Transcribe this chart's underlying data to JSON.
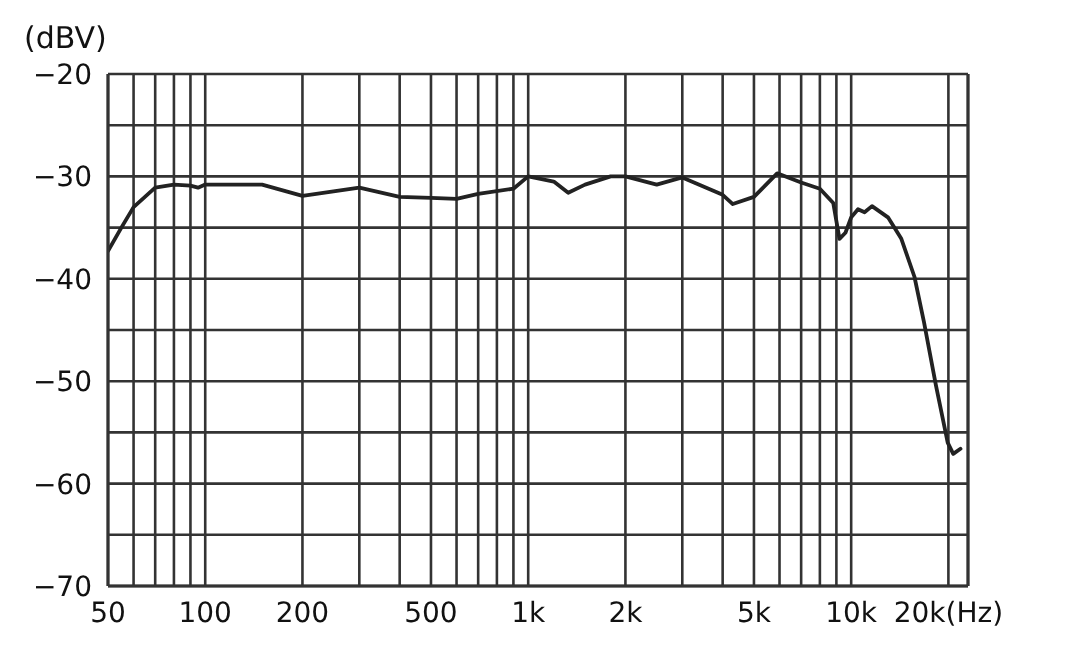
{
  "chart_data": {
    "type": "line",
    "ylabel": "(dBV)",
    "log": "x",
    "grid": true,
    "legend": false,
    "x": [
      50,
      55,
      60,
      70,
      80,
      90,
      95,
      100,
      150,
      200,
      300,
      400,
      500,
      600,
      700,
      900,
      1000,
      1200,
      1330,
      1500,
      1800,
      2000,
      2500,
      3000,
      4000,
      4300,
      5000,
      5900,
      7000,
      8000,
      8800,
      9200,
      9600,
      10000,
      10500,
      11000,
      11600,
      13000,
      14300,
      15700,
      16800,
      18300,
      19900,
      20700,
      21800
    ],
    "series": [
      {
        "color": "#222222",
        "values": [
          -37.3,
          -35,
          -33,
          -31.1,
          -30.8,
          -30.9,
          -31.1,
          -30.8,
          -30.8,
          -31.9,
          -31.1,
          -32,
          -32.1,
          -32.2,
          -31.7,
          -31.2,
          -30,
          -30.5,
          -31.6,
          -30.8,
          -30,
          -30,
          -30.8,
          -30.1,
          -31.8,
          -32.7,
          -32,
          -29.7,
          -30.6,
          -31.2,
          -32.6,
          -36.1,
          -35.5,
          -34,
          -33.2,
          -33.5,
          -32.9,
          -34,
          -36.1,
          -39.8,
          -44.2,
          -50.4,
          -56,
          -57.1,
          -56.6
        ]
      }
    ],
    "xlim": [
      50,
      23000
    ],
    "xticks": [
      50,
      {
        "value": 60,
        "label": null
      },
      {
        "value": 70,
        "label": null
      },
      {
        "value": 80,
        "label": null
      },
      {
        "value": 90,
        "label": null
      },
      100,
      200,
      {
        "value": 300,
        "label": null
      },
      {
        "value": 400,
        "label": null
      },
      500,
      {
        "value": 600,
        "label": null
      },
      {
        "value": 700,
        "label": null
      },
      {
        "value": 800,
        "label": null
      },
      {
        "value": 900,
        "label": null
      },
      {
        "value": 1000,
        "label": "1k"
      },
      {
        "value": 2000,
        "label": "2k"
      },
      {
        "value": 3000,
        "label": null
      },
      {
        "value": 4000,
        "label": null
      },
      {
        "value": 5000,
        "label": "5k"
      },
      {
        "value": 6000,
        "label": null
      },
      {
        "value": 7000,
        "label": null
      },
      {
        "value": 8000,
        "label": null
      },
      {
        "value": 9000,
        "label": null
      },
      {
        "value": 10000,
        "label": "10k"
      },
      {
        "value": 20000,
        "label": "20k(Hz)"
      }
    ],
    "ylim": [
      -70,
      -20
    ],
    "yticks": [
      -70,
      {
        "value": -65,
        "label": null
      },
      -60,
      {
        "value": -55,
        "label": null
      },
      -50,
      {
        "value": -45,
        "label": null
      },
      -40,
      {
        "value": -35,
        "label": null
      },
      -30,
      {
        "value": -25,
        "label": null
      },
      -20
    ]
  }
}
